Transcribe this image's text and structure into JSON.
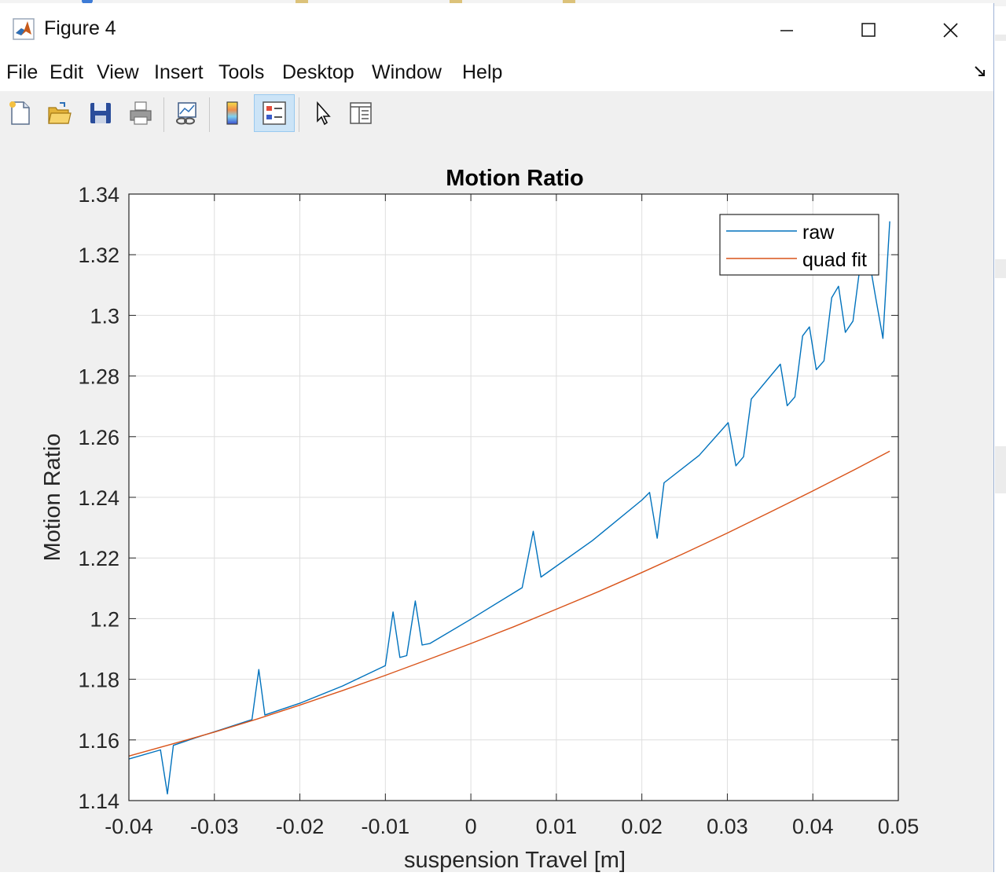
{
  "window": {
    "title": "Figure 4",
    "menu": [
      "File",
      "Edit",
      "View",
      "Insert",
      "Tools",
      "Desktop",
      "Window",
      "Help"
    ],
    "toolbar": [
      {
        "name": "new-figure-icon"
      },
      {
        "name": "open-file-icon"
      },
      {
        "name": "save-icon"
      },
      {
        "name": "print-icon"
      },
      {
        "name": "link-plot-icon"
      },
      {
        "name": "insert-colorbar-icon"
      },
      {
        "name": "insert-legend-icon",
        "active": true
      },
      {
        "name": "edit-plot-pointer-icon"
      },
      {
        "name": "property-inspector-icon"
      }
    ]
  },
  "chart_data": {
    "type": "line",
    "title": "Motion Ratio",
    "xlabel": "suspension Travel [m]",
    "ylabel": "Motion Ratio",
    "xlim": [
      -0.04,
      0.05
    ],
    "ylim": [
      1.14,
      1.34
    ],
    "xticks": [
      "-0.04",
      "-0.03",
      "-0.02",
      "-0.01",
      "0",
      "0.01",
      "0.02",
      "0.03",
      "0.04",
      "0.05"
    ],
    "yticks": [
      "1.14",
      "1.16",
      "1.18",
      "1.2",
      "1.22",
      "1.24",
      "1.26",
      "1.28",
      "1.3",
      "1.32",
      "1.34"
    ],
    "grid": true,
    "legend_position": "top-right",
    "series": [
      {
        "name": "raw",
        "color": "#0072bd",
        "points": [
          [
            -0.04,
            1.1537
          ],
          [
            -0.0363,
            1.1567
          ],
          [
            -0.0355,
            1.1422
          ],
          [
            -0.0348,
            1.1582
          ],
          [
            -0.0322,
            1.1607
          ],
          [
            -0.029,
            1.1636
          ],
          [
            -0.0256,
            1.1667
          ],
          [
            -0.0248,
            1.1832
          ],
          [
            -0.0241,
            1.1682
          ],
          [
            -0.02,
            1.1721
          ],
          [
            -0.015,
            1.1778
          ],
          [
            -0.01,
            1.1845
          ],
          [
            -0.0091,
            1.2022
          ],
          [
            -0.0083,
            1.1872
          ],
          [
            -0.0075,
            1.1878
          ],
          [
            -0.0065,
            1.2058
          ],
          [
            -0.0057,
            1.1913
          ],
          [
            -0.0048,
            1.1918
          ],
          [
            0,
            1.1998
          ],
          [
            0.006,
            1.2102
          ],
          [
            0.0073,
            1.2288
          ],
          [
            0.0082,
            1.2137
          ],
          [
            0.0142,
            1.2257
          ],
          [
            0.02,
            1.2391
          ],
          [
            0.0209,
            1.2416
          ],
          [
            0.0218,
            1.2265
          ],
          [
            0.0226,
            1.2448
          ],
          [
            0.0267,
            1.2538
          ],
          [
            0.0301,
            1.2646
          ],
          [
            0.031,
            1.2504
          ],
          [
            0.0319,
            1.2534
          ],
          [
            0.0328,
            1.2724
          ],
          [
            0.0362,
            1.2839
          ],
          [
            0.037,
            1.2702
          ],
          [
            0.0379,
            1.2731
          ],
          [
            0.0388,
            1.2932
          ],
          [
            0.0396,
            1.2962
          ],
          [
            0.0404,
            1.2821
          ],
          [
            0.0413,
            1.285
          ],
          [
            0.0422,
            1.3058
          ],
          [
            0.043,
            1.3096
          ],
          [
            0.0438,
            1.2944
          ],
          [
            0.0447,
            1.2981
          ],
          [
            0.0456,
            1.3178
          ],
          [
            0.0464,
            1.3216
          ],
          [
            0.0473,
            1.3067
          ],
          [
            0.0482,
            1.2924
          ],
          [
            0.049,
            1.331
          ]
        ]
      },
      {
        "name": "quad fit",
        "color": "#d95319",
        "points": [
          [
            -0.04,
            1.1547
          ],
          [
            -0.035,
            1.1586
          ],
          [
            -0.03,
            1.1626
          ],
          [
            -0.025,
            1.1669
          ],
          [
            -0.02,
            1.1715
          ],
          [
            -0.015,
            1.1763
          ],
          [
            -0.01,
            1.1813
          ],
          [
            -0.005,
            1.1865
          ],
          [
            0,
            1.1918
          ],
          [
            0.005,
            1.1973
          ],
          [
            0.01,
            1.2031
          ],
          [
            0.015,
            1.209
          ],
          [
            0.02,
            1.2152
          ],
          [
            0.025,
            1.2216
          ],
          [
            0.03,
            1.2282
          ],
          [
            0.035,
            1.2351
          ],
          [
            0.04,
            1.2421
          ],
          [
            0.045,
            1.2493
          ],
          [
            0.049,
            1.2552
          ]
        ]
      }
    ]
  }
}
